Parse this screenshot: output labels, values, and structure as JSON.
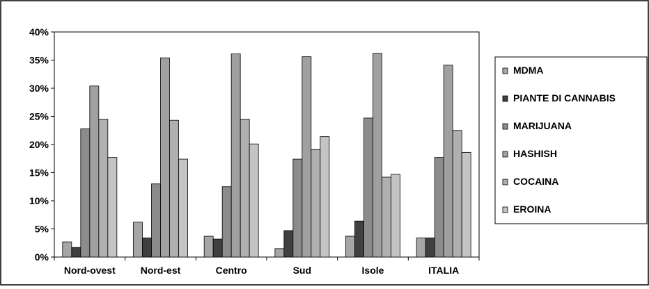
{
  "chart_data": {
    "type": "bar",
    "title": "",
    "xlabel": "",
    "ylabel": "",
    "ylim": [
      0,
      40
    ],
    "y_ticks": [
      "0%",
      "5%",
      "10%",
      "15%",
      "20%",
      "25%",
      "30%",
      "35%",
      "40%"
    ],
    "grid": false,
    "legend_position": "right",
    "categories": [
      "Nord-ovest",
      "Nord-est",
      "Centro",
      "Sud",
      "Isole",
      "ITALIA"
    ],
    "series": [
      {
        "name": "MDMA",
        "color": "#a6a6a6",
        "values": [
          2.7,
          6.2,
          3.7,
          1.5,
          3.7,
          3.4
        ]
      },
      {
        "name": "PIANTE DI CANNABIS",
        "color": "#404040",
        "values": [
          1.7,
          3.4,
          3.2,
          4.7,
          6.4,
          3.4
        ]
      },
      {
        "name": "MARIJUANA",
        "color": "#8c8c8c",
        "values": [
          22.8,
          13.0,
          12.5,
          17.4,
          24.7,
          17.7
        ]
      },
      {
        "name": "HASHISH",
        "color": "#a0a0a0",
        "values": [
          30.4,
          35.4,
          36.1,
          35.6,
          36.2,
          34.1
        ]
      },
      {
        "name": "COCAINA",
        "color": "#b0b0b0",
        "values": [
          24.5,
          24.3,
          24.5,
          19.1,
          14.2,
          22.5
        ]
      },
      {
        "name": "EROINA",
        "color": "#c4c4c4",
        "values": [
          17.7,
          17.4,
          20.1,
          21.4,
          14.7,
          18.6
        ]
      }
    ]
  }
}
